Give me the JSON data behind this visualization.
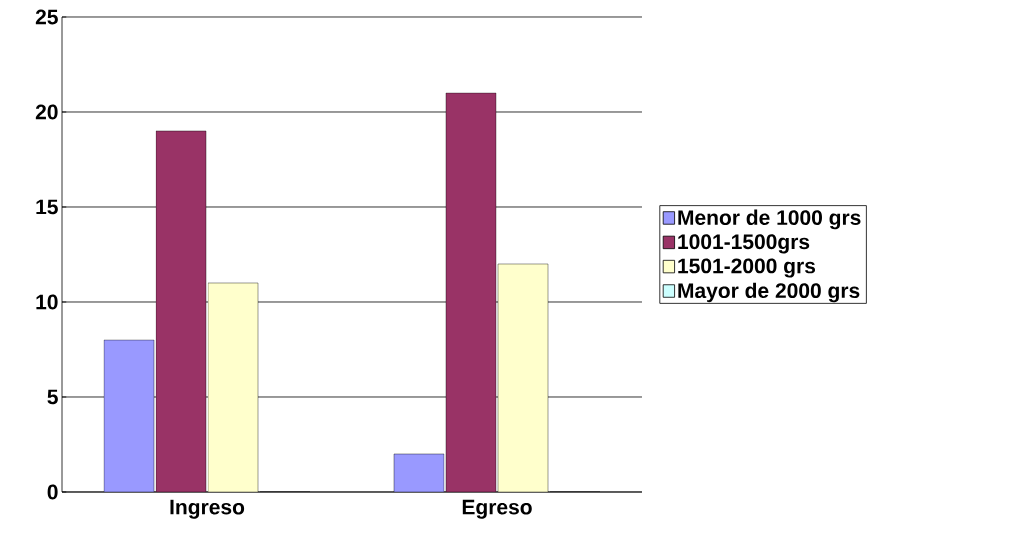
{
  "chart_data": {
    "type": "bar",
    "categories": [
      "Ingreso",
      "Egreso"
    ],
    "series": [
      {
        "name": "Menor de 1000 grs",
        "color": "#9999ff",
        "values": [
          8,
          2
        ]
      },
      {
        "name": "1001-1500grs",
        "color": "#993366",
        "values": [
          19,
          21
        ]
      },
      {
        "name": "1501-2000 grs",
        "color": "#ffffcc",
        "values": [
          11,
          12
        ]
      },
      {
        "name": "Mayor de 2000 grs",
        "color": "#ccffff",
        "values": [
          0,
          0
        ]
      }
    ],
    "ylim": [
      0,
      25
    ],
    "yticks": [
      0,
      5,
      10,
      15,
      20,
      25
    ],
    "grid": "y",
    "legend": "right"
  }
}
